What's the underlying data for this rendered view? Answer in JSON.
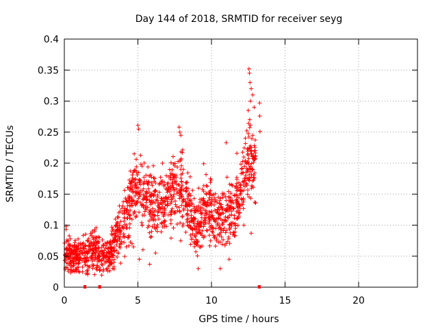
{
  "chart_data": {
    "type": "scatter",
    "title": "Day 144 of 2018, SRMTID for receiver seyg",
    "xlabel": "GPS time / hours",
    "ylabel": "SRMTID / TECUs",
    "xlim": [
      0,
      24
    ],
    "ylim": [
      0,
      0.4
    ],
    "xticks": [
      0,
      5,
      10,
      15,
      20
    ],
    "xtick_labels": [
      "0",
      "5",
      "10",
      "15",
      "20"
    ],
    "yticks": [
      0,
      0.05,
      0.1,
      0.15,
      0.2,
      0.25,
      0.3,
      0.35,
      0.4
    ],
    "ytick_labels": [
      "0",
      "0.05",
      "0.1",
      "0.15",
      "0.2",
      "0.25",
      "0.3",
      "0.35",
      "0.4"
    ],
    "grid": true,
    "marker": "+",
    "color": "#ff0000",
    "envelope": [
      [
        0.0,
        0.06,
        0.03
      ],
      [
        0.5,
        0.045,
        0.02
      ],
      [
        1.0,
        0.05,
        0.02
      ],
      [
        1.5,
        0.055,
        0.025
      ],
      [
        2.0,
        0.06,
        0.025
      ],
      [
        2.5,
        0.05,
        0.02
      ],
      [
        3.0,
        0.05,
        0.02
      ],
      [
        3.5,
        0.08,
        0.03
      ],
      [
        4.0,
        0.1,
        0.035
      ],
      [
        4.5,
        0.14,
        0.04
      ],
      [
        5.0,
        0.16,
        0.045
      ],
      [
        5.5,
        0.14,
        0.04
      ],
      [
        6.0,
        0.13,
        0.04
      ],
      [
        6.5,
        0.13,
        0.035
      ],
      [
        7.0,
        0.15,
        0.04
      ],
      [
        7.5,
        0.16,
        0.04
      ],
      [
        8.0,
        0.16,
        0.045
      ],
      [
        8.5,
        0.12,
        0.04
      ],
      [
        9.0,
        0.09,
        0.03
      ],
      [
        9.5,
        0.13,
        0.04
      ],
      [
        10.0,
        0.12,
        0.035
      ],
      [
        10.5,
        0.11,
        0.035
      ],
      [
        11.0,
        0.12,
        0.035
      ],
      [
        11.5,
        0.12,
        0.04
      ],
      [
        12.0,
        0.16,
        0.04
      ],
      [
        12.5,
        0.2,
        0.045
      ],
      [
        13.0,
        0.2,
        0.04
      ]
    ],
    "n_points": 1500,
    "outliers": [
      [
        12.55,
        0.352
      ],
      [
        12.58,
        0.345
      ],
      [
        12.62,
        0.33
      ],
      [
        12.7,
        0.32
      ],
      [
        12.8,
        0.31
      ],
      [
        12.65,
        0.3
      ],
      [
        12.5,
        0.285
      ],
      [
        13.27,
        0.297
      ],
      [
        13.28,
        0.276
      ],
      [
        13.3,
        0.251
      ],
      [
        5.0,
        0.261
      ],
      [
        5.05,
        0.255
      ],
      [
        7.8,
        0.258
      ],
      [
        7.85,
        0.25
      ],
      [
        12.9,
        0.29
      ],
      [
        12.6,
        0.27
      ],
      [
        11.0,
        0.233
      ],
      [
        12.3,
        0.24
      ],
      [
        5.1,
        0.045
      ],
      [
        5.8,
        0.037
      ],
      [
        9.1,
        0.03
      ],
      [
        10.6,
        0.03
      ],
      [
        11.2,
        0.045
      ],
      [
        12.7,
        0.087
      ],
      [
        12.2,
        0.1
      ],
      [
        4.7,
        0.065
      ],
      [
        4.6,
        0.07
      ]
    ],
    "x_axis_markers": [
      1.4,
      2.4,
      13.25
    ]
  }
}
